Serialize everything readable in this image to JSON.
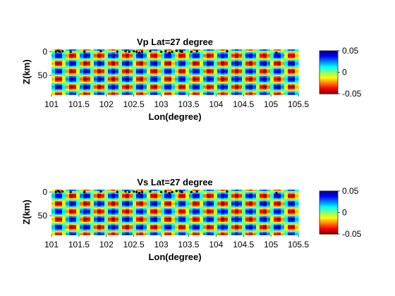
{
  "chart_data": [
    {
      "type": "heatmap",
      "title": "Vp Lat=27 degree",
      "xlabel": "Lon(degree)",
      "ylabel": "Z(km)",
      "xlim": [
        101,
        105.5
      ],
      "ylim": [
        90,
        -5
      ],
      "y_reversed": true,
      "xticks": [
        101,
        101.5,
        102,
        102.5,
        103,
        103.5,
        104,
        104.5,
        105,
        105.5
      ],
      "xtick_labels": [
        "101",
        "101.5",
        "102",
        "102.5",
        "103",
        "103.5",
        "104",
        "104.5",
        "105",
        "105.5"
      ],
      "yticks": [
        0,
        50
      ],
      "ytick_labels": [
        "0",
        "50"
      ],
      "checkerboard": {
        "amplitude": 0.05,
        "x_period_deg": 0.5,
        "z_period_km": 33
      },
      "colorbar": {
        "min": -0.05,
        "max": 0.05,
        "ticks": [
          0.05,
          0,
          -0.05
        ],
        "tick_labels": [
          "0.05",
          "0",
          "-0.05"
        ],
        "colormap": "jet-reversed"
      },
      "stations": [
        [
          101.08,
          0
        ],
        [
          101.12,
          -2
        ],
        [
          101.15,
          0
        ],
        [
          101.2,
          -1
        ],
        [
          101.35,
          0
        ],
        [
          101.6,
          0
        ],
        [
          101.9,
          -1
        ],
        [
          102.2,
          0
        ],
        [
          102.35,
          -1
        ],
        [
          102.42,
          0
        ],
        [
          102.5,
          -1
        ],
        [
          102.55,
          0
        ],
        [
          102.6,
          2
        ],
        [
          102.65,
          0
        ],
        [
          102.8,
          -1
        ],
        [
          103.0,
          0
        ],
        [
          103.08,
          -1
        ],
        [
          103.15,
          2
        ],
        [
          103.2,
          0
        ],
        [
          103.28,
          -2
        ],
        [
          103.35,
          -1
        ],
        [
          103.38,
          0
        ],
        [
          103.55,
          0
        ],
        [
          103.65,
          -1
        ],
        [
          104.2,
          -1
        ],
        [
          105.1,
          2
        ]
      ]
    },
    {
      "type": "heatmap",
      "title": "Vs Lat=27 degree",
      "xlabel": "Lon(degree)",
      "ylabel": "Z(km)",
      "xlim": [
        101,
        105.5
      ],
      "ylim": [
        90,
        -5
      ],
      "y_reversed": true,
      "xticks": [
        101,
        101.5,
        102,
        102.5,
        103,
        103.5,
        104,
        104.5,
        105,
        105.5
      ],
      "xtick_labels": [
        "101",
        "101.5",
        "102",
        "102.5",
        "103",
        "103.5",
        "104",
        "104.5",
        "105",
        "105.5"
      ],
      "yticks": [
        0,
        50
      ],
      "ytick_labels": [
        "0",
        "50"
      ],
      "checkerboard": {
        "amplitude": 0.05,
        "x_period_deg": 0.5,
        "z_period_km": 33
      },
      "colorbar": {
        "min": -0.05,
        "max": 0.05,
        "ticks": [
          0.05,
          0,
          -0.05
        ],
        "tick_labels": [
          "0.05",
          "0",
          "-0.05"
        ],
        "colormap": "jet-reversed"
      },
      "stations": [
        [
          101.08,
          0
        ],
        [
          101.12,
          -2
        ],
        [
          101.15,
          0
        ],
        [
          101.2,
          -1
        ],
        [
          101.35,
          0
        ],
        [
          101.6,
          0
        ],
        [
          101.9,
          -1
        ],
        [
          102.2,
          0
        ],
        [
          102.35,
          -1
        ],
        [
          102.42,
          0
        ],
        [
          102.5,
          -1
        ],
        [
          102.55,
          0
        ],
        [
          102.6,
          2
        ],
        [
          102.65,
          0
        ],
        [
          102.8,
          -1
        ],
        [
          103.0,
          0
        ],
        [
          103.08,
          -1
        ],
        [
          103.15,
          2
        ],
        [
          103.2,
          0
        ],
        [
          103.28,
          -2
        ],
        [
          103.35,
          -1
        ],
        [
          103.38,
          0
        ],
        [
          103.55,
          0
        ],
        [
          103.65,
          -1
        ],
        [
          104.2,
          -1
        ],
        [
          105.1,
          2
        ]
      ]
    }
  ]
}
